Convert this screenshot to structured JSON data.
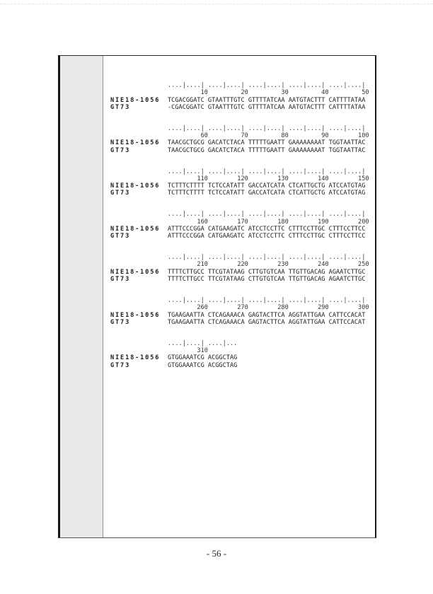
{
  "page": {
    "number": "- 56 -"
  },
  "alignment": {
    "blocks": [
      {
        "ruler": "....|....| ....|....| ....|....| ....|....| ....|....|",
        "numbers": "         10         20         30         40         50",
        "rows": [
          {
            "label": "NIE18-1056",
            "seq": "TCGACGGATC GTAATTTGTC GTTTTATCAA AATGTACTTT CATTTTATAA"
          },
          {
            "label": "GT73",
            "seq": "-CGACGGATC GTAATTTGTC GTTTTATCAA AATGTACTTT CATTTTATAA"
          }
        ]
      },
      {
        "ruler": "....|....| ....|....| ....|....| ....|....| ....|....|",
        "numbers": "         60         70         80         90        100",
        "rows": [
          {
            "label": "NIE18-1056",
            "seq": "TAACGCTGCG GACATCTACA TTTTTGAATT GAAAAAAAAT TGGTAATTAC"
          },
          {
            "label": "GT73",
            "seq": "TAACGCTGCG GACATCTACA TTTTTGAATT GAAAAAAAAT TGGTAATTAC"
          }
        ]
      },
      {
        "ruler": "....|....| ....|....| ....|....| ....|....| ....|....|",
        "numbers": "        110        120        130        140        150",
        "rows": [
          {
            "label": "NIE18-1056",
            "seq": "TCTTTCTTTT TCTCCATATT GACCATCATA CTCATTGCTG ATCCATGTAG"
          },
          {
            "label": "GT73",
            "seq": "TCTTTCTTTT TCTCCATATT GACCATCATA CTCATTGCTG ATCCATGTAG"
          }
        ]
      },
      {
        "ruler": "....|....| ....|....| ....|....| ....|....| ....|....|",
        "numbers": "        160        170        180        190        200",
        "rows": [
          {
            "label": "NIE18-1056",
            "seq": "ATTTCCCGGA CATGAAGATC ATCCTCCTTC CTTTCCTTGC CTTTCCTTCC"
          },
          {
            "label": "GT73",
            "seq": "ATTTCCCGGA CATGAAGATC ATCCTCCTTC CTTTCCTTGC CTTTCCTTCC"
          }
        ]
      },
      {
        "ruler": "....|....| ....|....| ....|....| ....|....| ....|....|",
        "numbers": "        210        220        230        240        250",
        "rows": [
          {
            "label": "NIE18-1056",
            "seq": "TTTTCTTGCC TTCGTATAAG CTTGTGTCAA TTGTTGACAG AGAATCTTGC"
          },
          {
            "label": "GT73",
            "seq": "TTTTCTTGCC TTCGTATAAG CTTGTGTCAA TTGTTGACAG AGAATCTTGC"
          }
        ]
      },
      {
        "ruler": "....|....| ....|....| ....|....| ....|....| ....|....|",
        "numbers": "        260        270        280        290        300",
        "rows": [
          {
            "label": "NIE18-1056",
            "seq": "TGAAGAATTA CTCAGAAACA GAGTACTTCA AGGTATTGAA CATTCCACAT"
          },
          {
            "label": "GT73",
            "seq": "TGAAGAATTA CTCAGAAACA GAGTACTTCA AGGTATTGAA CATTCCACAT"
          }
        ]
      },
      {
        "ruler": "....|....| ....|...",
        "numbers": "        310",
        "rows": [
          {
            "label": "NIE18-1056",
            "seq": "GTGGAAATCG ACGGCTAG"
          },
          {
            "label": "GT73",
            "seq": "GTGGAAATCG ACGGCTAG"
          }
        ]
      }
    ]
  }
}
